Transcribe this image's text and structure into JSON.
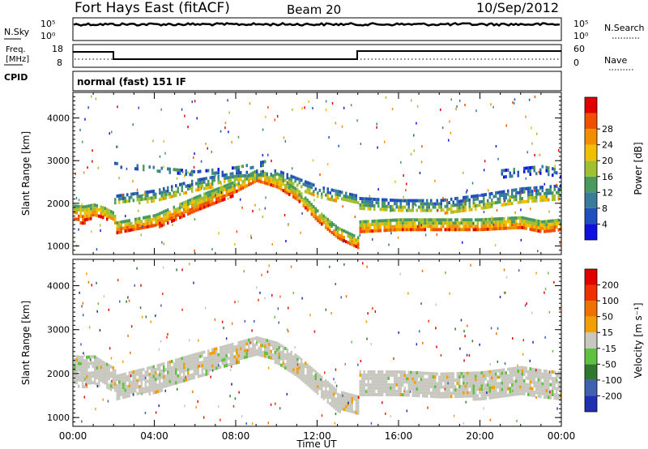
{
  "header": {
    "station": "Fort Hays East (fitACF)",
    "beam": "Beam 20",
    "date": "10/Sep/2012"
  },
  "aux_labels": {
    "nsky": "N.Sky",
    "nsearch": "N.Search",
    "freq_line1": "Freq.",
    "freq_line2": "[MHz]",
    "cpid": "CPID",
    "nave": "Nave",
    "cpid_text": "normal (fast) 151 IF"
  },
  "aux_ticks": {
    "noise_left": [
      "10^5",
      "10^0"
    ],
    "noise_right": [
      "10^5",
      "10^0"
    ],
    "freq_left": [
      "18",
      "8"
    ],
    "freq_right": [
      "60",
      "0"
    ]
  },
  "chart_data": [
    {
      "type": "heatmap",
      "panel": "power",
      "ylabel": "Slant Range [km]",
      "ylim": [
        800,
        4600
      ],
      "yticks": [
        1000,
        2000,
        3000,
        4000
      ],
      "xlim": [
        0,
        24
      ],
      "colorbar_label": "Power [dB]",
      "colorbar_ticks": [
        "4",
        "8",
        "12",
        "16",
        "20",
        "24",
        "28"
      ],
      "colorbar_colors": [
        "#1010e0",
        "#2050c0",
        "#3a7a9a",
        "#4a9a60",
        "#a0c030",
        "#f0c000",
        "#f09000",
        "#f05000",
        "#e00000"
      ],
      "bands": [
        {
          "x": [
            0.0,
            0.5,
            1.0,
            1.5,
            2.0,
            2.1,
            4.0,
            6.0,
            8.0,
            9.0,
            10.0,
            11.0,
            12.0,
            13.0,
            14.0,
            14.05,
            16.0,
            18.0,
            20.0,
            22.0,
            23.0,
            24.0
          ],
          "center": [
            1800,
            1750,
            1850,
            1800,
            1700,
            1450,
            1600,
            2000,
            2400,
            2650,
            2500,
            2200,
            1700,
            1300,
            1100,
            1450,
            1500,
            1500,
            1500,
            1550,
            1450,
            1500
          ],
          "width": [
            350,
            400,
            300,
            250,
            200,
            250,
            300,
            350,
            300,
            300,
            300,
            300,
            300,
            300,
            250,
            300,
            300,
            300,
            300,
            300,
            300,
            300
          ],
          "level": "strong"
        },
        {
          "x": [
            2.0,
            4.0,
            6.0,
            8.0,
            10.0,
            12.0,
            14.0
          ],
          "center": [
            2100,
            2200,
            2450,
            2650,
            2700,
            2300,
            2100
          ],
          "width": [
            200,
            250,
            250,
            200,
            200,
            250,
            200
          ],
          "level": "medium"
        },
        {
          "x": [
            14.0,
            16.0,
            18.0,
            20.0,
            22.0,
            24.0
          ],
          "center": [
            2000,
            1950,
            1950,
            2050,
            2200,
            2300
          ],
          "width": [
            300,
            300,
            300,
            350,
            350,
            300
          ],
          "level": "medium"
        },
        {
          "x": [
            2.0,
            4.0,
            6.0,
            8.0,
            9.5
          ],
          "center": [
            2900,
            2800,
            2700,
            2800,
            2950
          ],
          "width": [
            150,
            150,
            150,
            150,
            150
          ],
          "level": "weak"
        },
        {
          "x": [
            21.0,
            22.0,
            23.0,
            24.0
          ],
          "center": [
            2700,
            2750,
            2800,
            2700
          ],
          "width": [
            200,
            200,
            200,
            200
          ],
          "level": "weak"
        }
      ]
    },
    {
      "type": "heatmap",
      "panel": "velocity",
      "ylabel": "Slant Range [km]",
      "ylim": [
        800,
        4600
      ],
      "yticks": [
        1000,
        2000,
        3000,
        4000
      ],
      "xlim": [
        0,
        24
      ],
      "xlabel": "Time UT",
      "xticks": [
        "00:00",
        "04:00",
        "08:00",
        "12:00",
        "16:00",
        "20:00",
        "00:00"
      ],
      "colorbar_label": "Velocity [m s⁻¹]",
      "colorbar_ticks": [
        "200",
        "100",
        "50",
        "15",
        "-15",
        "-50",
        "-100",
        "-200"
      ],
      "colorbar_colors": [
        "#2030b0",
        "#4060b0",
        "#307830",
        "#60c040",
        "#c8c8c0",
        "#f0a000",
        "#f07000",
        "#f03000",
        "#e00000"
      ],
      "bands": [
        {
          "x": [
            0.0,
            0.5,
            1.0,
            1.5,
            2.0,
            2.1,
            4.0,
            6.0,
            8.0,
            9.0,
            10.0,
            11.0,
            12.0,
            13.0,
            14.0,
            14.05,
            16.0,
            18.0,
            20.0,
            22.0,
            23.0,
            24.0
          ],
          "center": [
            2100,
            2050,
            2100,
            2000,
            1900,
            1700,
            1900,
            2200,
            2500,
            2650,
            2500,
            2200,
            1800,
            1400,
            1300,
            1800,
            1800,
            1750,
            1750,
            1850,
            1800,
            1750
          ],
          "width": [
            650,
            700,
            650,
            550,
            500,
            550,
            600,
            550,
            450,
            400,
            450,
            450,
            450,
            450,
            400,
            550,
            550,
            550,
            600,
            650,
            600,
            600
          ],
          "level": "ground"
        }
      ]
    }
  ]
}
